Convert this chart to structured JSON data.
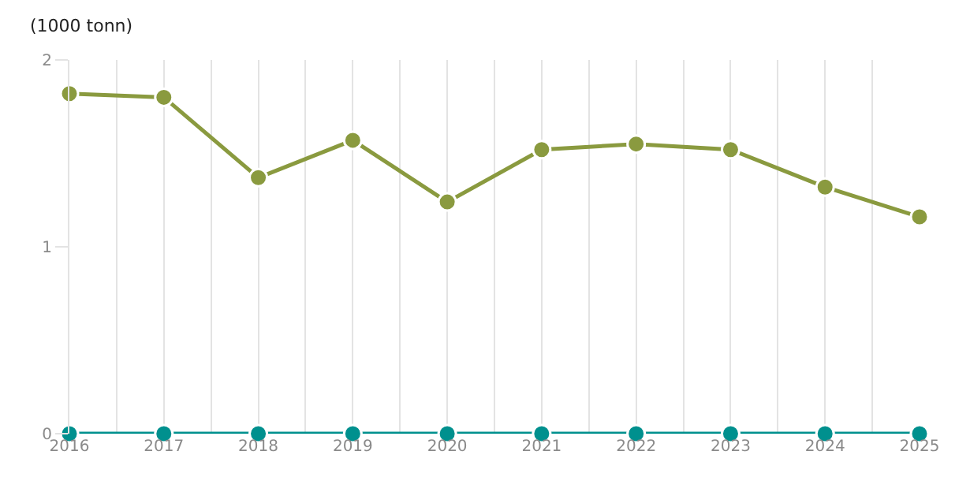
{
  "chart_data": {
    "type": "line",
    "ylabel": "(1000 tonn)",
    "x": [
      2016,
      2017,
      2018,
      2019,
      2020,
      2021,
      2022,
      2023,
      2024,
      2025
    ],
    "series": [
      {
        "color": "#8a9a3f",
        "values": [
          1.82,
          1.8,
          1.37,
          1.57,
          1.24,
          1.52,
          1.55,
          1.52,
          1.32,
          1.16
        ]
      },
      {
        "color": "#00908e",
        "values": [
          0,
          0,
          0,
          0,
          0,
          0,
          0,
          0,
          0,
          0
        ]
      }
    ],
    "xlim": [
      2016,
      2025
    ],
    "xticks": [
      2016,
      2017,
      2018,
      2019,
      2020,
      2021,
      2022,
      2023,
      2024,
      2025
    ],
    "ylim": [
      0,
      2
    ],
    "yticks": [
      0,
      1,
      2
    ],
    "grid": "x",
    "marker": "circle",
    "line_style": "solid"
  }
}
